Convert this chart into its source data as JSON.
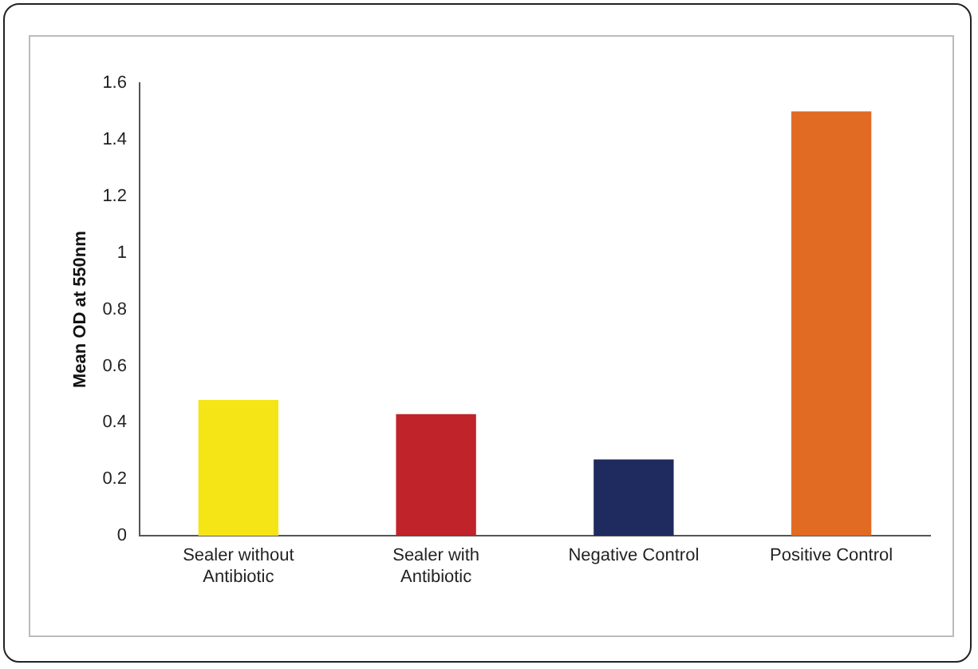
{
  "chart_data": {
    "type": "bar",
    "ylabel": "Mean OD at 550nm",
    "categories": [
      "Sealer without Antibiotic",
      "Sealer with Antibiotic",
      "Negative Control",
      "Positive Control"
    ],
    "values": [
      0.48,
      0.43,
      0.27,
      1.5
    ],
    "colors": [
      "#f5e516",
      "#c0232a",
      "#1f2a5e",
      "#e26b24"
    ],
    "ylim": [
      0,
      1.6
    ],
    "yticks": [
      0,
      0.2,
      0.4,
      0.6,
      0.8,
      1,
      1.2,
      1.4,
      1.6
    ],
    "grid": false,
    "legend": false
  }
}
